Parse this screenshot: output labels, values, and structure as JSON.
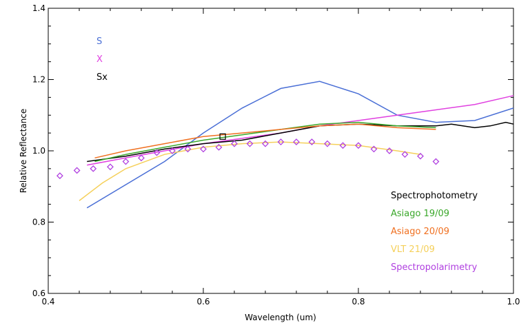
{
  "chart_data": {
    "type": "line",
    "xlabel": "Wavelength (um)",
    "ylabel": "Relative Reflectance",
    "xlim": [
      0.4,
      1.0
    ],
    "ylim": [
      0.6,
      1.4
    ],
    "x_ticks": [
      0.4,
      0.6,
      0.8,
      1.0
    ],
    "x_tick_labels": [
      "0.4",
      "0.6",
      "0.8",
      "1.0"
    ],
    "y_ticks": [
      0.6,
      0.8,
      1.0,
      1.2,
      1.4
    ],
    "y_tick_labels": [
      "0.6",
      "0.8",
      "1.0",
      "1.2",
      "1.4"
    ],
    "grid": false,
    "taxonomy_legend": [
      {
        "label": "S",
        "color": "#4a6fd6"
      },
      {
        "label": "X",
        "color": "#e040e0"
      },
      {
        "label": "Sx",
        "color": "#000000"
      }
    ],
    "data_legend": [
      {
        "label": "Spectrophotometry",
        "color": "#000000"
      },
      {
        "label": "Asiago 19/09",
        "color": "#3aa82a"
      },
      {
        "label": "Asiago 20/09",
        "color": "#f07020"
      },
      {
        "label": "VLT 21/09",
        "color": "#f5d05a"
      },
      {
        "label": "Spectropolarimetry",
        "color": "#b040e0"
      }
    ],
    "series": [
      {
        "name": "S",
        "kind": "line",
        "color": "#4a6fd6",
        "x": [
          0.45,
          0.55,
          0.6,
          0.65,
          0.7,
          0.75,
          0.8,
          0.85,
          0.9,
          0.95,
          1.0
        ],
        "y": [
          0.84,
          0.97,
          1.05,
          1.12,
          1.175,
          1.195,
          1.16,
          1.1,
          1.08,
          1.085,
          1.12
        ]
      },
      {
        "name": "X",
        "kind": "line",
        "color": "#e040e0",
        "x": [
          0.45,
          0.5,
          0.55,
          0.6,
          0.65,
          0.7,
          0.75,
          0.8,
          0.85,
          0.9,
          0.95,
          1.0
        ],
        "y": [
          0.96,
          0.98,
          1.0,
          1.02,
          1.035,
          1.05,
          1.07,
          1.085,
          1.1,
          1.115,
          1.13,
          1.155
        ]
      },
      {
        "name": "Sx",
        "kind": "line",
        "color": "#000000",
        "x": [
          0.9,
          0.92,
          0.95,
          0.97,
          0.99,
          1.0
        ],
        "y": [
          1.07,
          1.075,
          1.065,
          1.07,
          1.08,
          1.075
        ]
      },
      {
        "name": "Spectrophotometry",
        "kind": "line",
        "color": "#000000",
        "x": [
          0.45,
          0.5,
          0.55,
          0.6,
          0.65,
          0.7,
          0.75,
          0.8,
          0.85,
          0.9
        ],
        "y": [
          0.97,
          0.985,
          1.005,
          1.02,
          1.03,
          1.05,
          1.07,
          1.075,
          1.07,
          1.07
        ]
      },
      {
        "name": "Asiago 19/09",
        "kind": "line",
        "color": "#3aa82a",
        "x": [
          0.46,
          0.5,
          0.55,
          0.6,
          0.65,
          0.7,
          0.75,
          0.8,
          0.85,
          0.9
        ],
        "y": [
          0.97,
          0.99,
          1.01,
          1.03,
          1.045,
          1.06,
          1.075,
          1.08,
          1.07,
          1.065
        ]
      },
      {
        "name": "Asiago 20/09",
        "kind": "line",
        "color": "#f07020",
        "x": [
          0.46,
          0.5,
          0.55,
          0.6,
          0.65,
          0.7,
          0.75,
          0.8,
          0.85,
          0.9
        ],
        "y": [
          0.98,
          1.0,
          1.02,
          1.04,
          1.05,
          1.06,
          1.07,
          1.075,
          1.065,
          1.06
        ]
      },
      {
        "name": "VLT 21/09",
        "kind": "line",
        "color": "#f5d05a",
        "x": [
          0.44,
          0.47,
          0.5,
          0.55,
          0.6,
          0.65,
          0.7,
          0.75,
          0.8,
          0.85,
          0.88
        ],
        "y": [
          0.86,
          0.91,
          0.95,
          0.99,
          1.01,
          1.02,
          1.025,
          1.02,
          1.015,
          1.0,
          0.99
        ]
      },
      {
        "name": "Spectropolarimetry",
        "kind": "scatter",
        "marker": "diamond",
        "color": "#b040e0",
        "x": [
          0.415,
          0.437,
          0.458,
          0.48,
          0.5,
          0.52,
          0.54,
          0.56,
          0.58,
          0.6,
          0.62,
          0.64,
          0.66,
          0.68,
          0.7,
          0.72,
          0.74,
          0.76,
          0.78,
          0.8,
          0.82,
          0.84,
          0.86,
          0.88,
          0.9
        ],
        "y": [
          0.93,
          0.945,
          0.95,
          0.955,
          0.97,
          0.98,
          0.995,
          1.0,
          1.005,
          1.005,
          1.01,
          1.02,
          1.02,
          1.02,
          1.025,
          1.025,
          1.025,
          1.02,
          1.015,
          1.015,
          1.005,
          1.0,
          0.99,
          0.985,
          0.97
        ]
      },
      {
        "name": "Spectrophotometry",
        "kind": "scatter",
        "marker": "square",
        "color": "#000000",
        "x": [
          0.625
        ],
        "y": [
          1.04
        ]
      }
    ]
  }
}
